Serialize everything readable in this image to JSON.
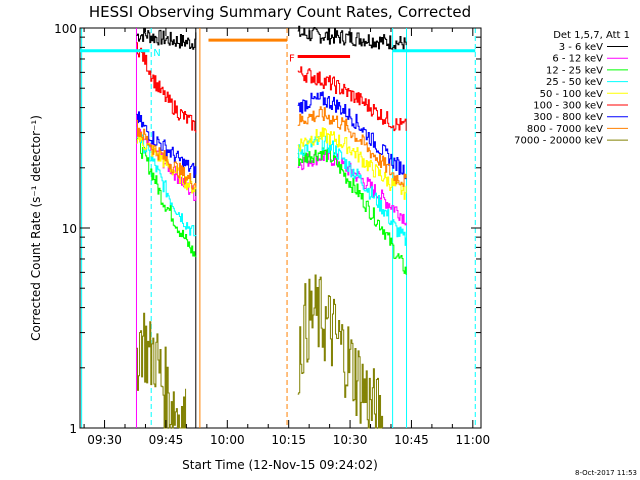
{
  "chart_data": {
    "type": "line",
    "title": "HESSI Observing Summary Count Rates, Corrected",
    "xlabel": "Start Time (12-Nov-15 09:24:02)",
    "ylabel": "Corrected Count Rate (s⁻¹ detector⁻¹)",
    "timestamp": "8-Oct-2017 11:53",
    "x_unit": "minutes after 09:24:02",
    "xlim": [
      0,
      98
    ],
    "ylim": [
      1,
      100
    ],
    "y_scale": "log",
    "x_ticks": [
      {
        "label": "09:30",
        "x": 6
      },
      {
        "label": "09:45",
        "x": 21
      },
      {
        "label": "10:00",
        "x": 36
      },
      {
        "label": "10:15",
        "x": 51
      },
      {
        "label": "10:30",
        "x": 66
      },
      {
        "label": "10:45",
        "x": 81
      },
      {
        "label": "11:00",
        "x": 96
      }
    ],
    "y_ticks": [
      {
        "label": "1",
        "y": 1
      },
      {
        "label": "10",
        "y": 10
      },
      {
        "label": "100",
        "y": 100
      }
    ],
    "legend_header": "Det 1,5,7, Att 1",
    "legend_position": "right",
    "series": [
      {
        "name": "3 - 6 keV",
        "color": "#000000",
        "segments": [
          [
            [
              13.8,
              92
            ],
            [
              16,
              93
            ],
            [
              18,
              90
            ],
            [
              20,
              89
            ],
            [
              22,
              87
            ],
            [
              24,
              86
            ],
            [
              26,
              85
            ],
            [
              27.5,
              84
            ],
            [
              28.3,
              92
            ]
          ],
          [
            [
              53.2,
              94
            ],
            [
              55,
              93
            ],
            [
              58,
              92
            ],
            [
              61,
              91
            ],
            [
              64,
              90
            ],
            [
              67,
              89
            ],
            [
              70,
              88
            ],
            [
              73,
              86
            ],
            [
              76,
              85
            ],
            [
              78.5,
              84
            ],
            [
              79.8,
              82
            ]
          ]
        ]
      },
      {
        "name": "6 - 12 keV",
        "color": "#ff00ff",
        "segments": [
          [
            [
              13.8,
              30
            ],
            [
              16,
              26
            ],
            [
              18,
              24
            ],
            [
              20,
              22
            ],
            [
              22,
              20
            ],
            [
              24,
              18
            ],
            [
              26,
              16
            ],
            [
              27.5,
              15
            ],
            [
              28.3,
              14.5
            ]
          ],
          [
            [
              53.2,
              21
            ],
            [
              56,
              22
            ],
            [
              59,
              23
            ],
            [
              62,
              22
            ],
            [
              65,
              20
            ],
            [
              68,
              18
            ],
            [
              71,
              16
            ],
            [
              74,
              14
            ],
            [
              77,
              12.5
            ],
            [
              79.8,
              11
            ]
          ]
        ]
      },
      {
        "name": "12 - 25 keV",
        "color": "#00ff00",
        "segments": [
          [
            [
              13.8,
              28
            ],
            [
              16,
              22
            ],
            [
              18,
              18
            ],
            [
              20,
              14
            ],
            [
              22,
              12
            ],
            [
              24,
              10
            ],
            [
              26,
              8.5
            ],
            [
              27.5,
              7.6
            ],
            [
              28.3,
              7.2
            ]
          ],
          [
            [
              53.2,
              22
            ],
            [
              56,
              23
            ],
            [
              59,
              24
            ],
            [
              62,
              22
            ],
            [
              65,
              18
            ],
            [
              68,
              15
            ],
            [
              71,
              12
            ],
            [
              74,
              10
            ],
            [
              77,
              7.5
            ],
            [
              79.8,
              6
            ]
          ]
        ]
      },
      {
        "name": "25 - 50 keV",
        "color": "#00ffff",
        "segments": [
          [
            [
              13.8,
              30
            ],
            [
              16,
              25
            ],
            [
              18,
              21
            ],
            [
              20,
              17
            ],
            [
              22,
              14
            ],
            [
              24,
              12
            ],
            [
              26,
              10.5
            ],
            [
              27.5,
              9.5
            ],
            [
              28.3,
              9
            ]
          ],
          [
            [
              53.2,
              24
            ],
            [
              56,
              26
            ],
            [
              59,
              27
            ],
            [
              62,
              25
            ],
            [
              65,
              21
            ],
            [
              68,
              18
            ],
            [
              71,
              15
            ],
            [
              74,
              12.5
            ],
            [
              77,
              10
            ],
            [
              79.8,
              8.5
            ]
          ]
        ]
      },
      {
        "name": "50 - 100 keV",
        "color": "#ffff00",
        "segments": [
          [
            [
              13.8,
              29
            ],
            [
              16,
              26
            ],
            [
              18,
              24
            ],
            [
              20,
              22
            ],
            [
              22,
              20
            ],
            [
              24,
              18.5
            ],
            [
              26,
              17
            ],
            [
              27.5,
              16
            ],
            [
              28.3,
              15.5
            ]
          ],
          [
            [
              53.2,
              26
            ],
            [
              56,
              28
            ],
            [
              59,
              29
            ],
            [
              62,
              28
            ],
            [
              65,
              26
            ],
            [
              68,
              23
            ],
            [
              71,
              20
            ],
            [
              74,
              18
            ],
            [
              77,
              16
            ],
            [
              79.8,
              15
            ]
          ]
        ]
      },
      {
        "name": "100 - 300 keV",
        "color": "#ff0000",
        "segments": [
          [
            [
              13.8,
              82
            ],
            [
              16,
              68
            ],
            [
              18,
              55
            ],
            [
              20,
              47
            ],
            [
              22,
              42
            ],
            [
              24,
              38
            ],
            [
              26,
              35
            ],
            [
              27.5,
              33
            ],
            [
              28.3,
              32
            ]
          ],
          [
            [
              53.2,
              60
            ],
            [
              56,
              58
            ],
            [
              59,
              55
            ],
            [
              62,
              52
            ],
            [
              65,
              48
            ],
            [
              68,
              44
            ],
            [
              71,
              40
            ],
            [
              74,
              36
            ],
            [
              77,
              33
            ],
            [
              79.8,
              32
            ]
          ]
        ]
      },
      {
        "name": "300 - 800 keV",
        "color": "#0000ff",
        "segments": [
          [
            [
              13.8,
              36
            ],
            [
              16,
              31
            ],
            [
              18,
              28
            ],
            [
              20,
              26
            ],
            [
              22,
              24
            ],
            [
              24,
              22
            ],
            [
              26,
              20.5
            ],
            [
              27.5,
              19.5
            ],
            [
              28.3,
              19
            ]
          ],
          [
            [
              53.2,
              40
            ],
            [
              56,
              43
            ],
            [
              59,
              44
            ],
            [
              62,
              42
            ],
            [
              65,
              38
            ],
            [
              68,
              33
            ],
            [
              71,
              28
            ],
            [
              74,
              24
            ],
            [
              77,
              21
            ],
            [
              79.8,
              19
            ]
          ]
        ]
      },
      {
        "name": "800 - 7000 keV",
        "color": "#ff8000",
        "segments": [
          [
            [
              13.8,
              32
            ],
            [
              16,
              28
            ],
            [
              18,
              25
            ],
            [
              20,
              23
            ],
            [
              22,
              21
            ],
            [
              24,
              19.5
            ],
            [
              26,
              18
            ],
            [
              27.5,
              17
            ],
            [
              28.3,
              16.5
            ]
          ],
          [
            [
              53.2,
              34
            ],
            [
              56,
              36
            ],
            [
              59,
              37
            ],
            [
              62,
              35
            ],
            [
              65,
              32
            ],
            [
              68,
              28
            ],
            [
              71,
              24
            ],
            [
              74,
              21
            ],
            [
              77,
              18
            ],
            [
              79.8,
              17
            ]
          ]
        ]
      },
      {
        "name": "7000 - 20000 keV",
        "color": "#808000",
        "segments": [
          [
            [
              13.8,
              2.4
            ],
            [
              15,
              2.9
            ],
            [
              16,
              2.6
            ],
            [
              17,
              2.2
            ],
            [
              18,
              2.5
            ],
            [
              19,
              2.0
            ],
            [
              20,
              1.7
            ],
            [
              21,
              1.5
            ],
            [
              22,
              1.4
            ],
            [
              23,
              1.3
            ],
            [
              24,
              1.2
            ],
            [
              25,
              1.1
            ],
            [
              26,
              1.0
            ]
          ],
          [
            [
              53.2,
              2.3
            ],
            [
              55,
              3.3
            ],
            [
              57,
              3.7
            ],
            [
              59,
              3.5
            ],
            [
              61,
              3.1
            ],
            [
              63,
              2.7
            ],
            [
              65,
              2.3
            ],
            [
              67,
              1.9
            ],
            [
              69,
              1.6
            ],
            [
              71,
              1.3
            ],
            [
              73,
              1.1
            ],
            [
              74,
              1.0
            ]
          ]
        ]
      }
    ],
    "annotations": {
      "flags": [
        {
          "label": "N",
          "x": 17.4,
          "y": 76,
          "color": "#00ffff"
        },
        {
          "label": "F",
          "x": 50.6,
          "y": 71,
          "color": "#ff0000"
        }
      ],
      "attenuator_bars": [
        {
          "x": [
            0,
            17.0
          ],
          "y": 77,
          "color": "#00ffff"
        },
        {
          "x": [
            76.5,
            96.6
          ],
          "y": 77,
          "color": "#00ffff"
        },
        {
          "x": [
            31.4,
            50.6
          ],
          "y": 87,
          "color": "#ff8000"
        },
        {
          "x": [
            53.2,
            66.0
          ],
          "y": 72,
          "color": "#ff0000"
        }
      ],
      "vlines": [
        {
          "x": 0.4,
          "color": "#00ffff",
          "dash": false
        },
        {
          "x": 13.8,
          "color": "#ff00ff",
          "dash": false
        },
        {
          "x": 17.4,
          "color": "#00ffff",
          "dash": true
        },
        {
          "x": 28.3,
          "color": "#000000",
          "dash": false
        },
        {
          "x": 29.3,
          "color": "#ff8000",
          "dash": false
        },
        {
          "x": 50.6,
          "color": "#ff8000",
          "dash": true
        },
        {
          "x": 76.4,
          "color": "#00ffff",
          "dash": false
        },
        {
          "x": 79.8,
          "color": "#00ffff",
          "dash": false
        },
        {
          "x": 96.6,
          "color": "#00ffff",
          "dash": true
        }
      ]
    }
  }
}
